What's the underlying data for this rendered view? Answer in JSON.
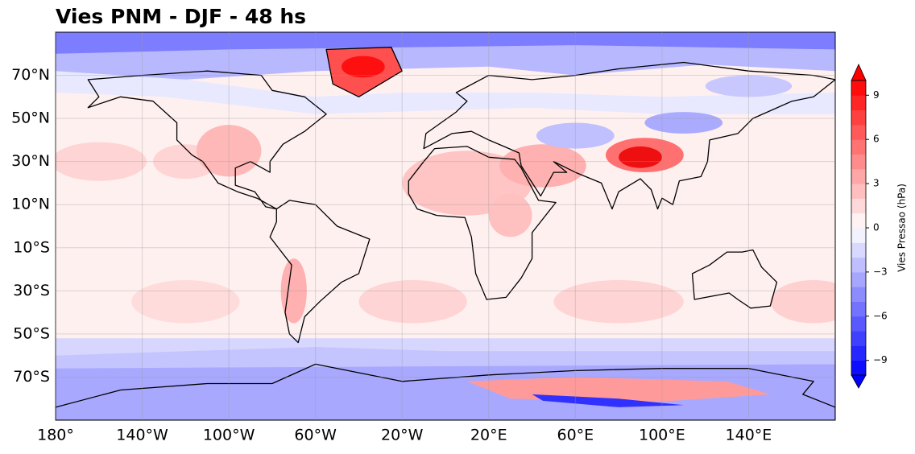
{
  "map": {
    "title": "Vies PNM - DJF - 48 hs",
    "xlim": [
      -180,
      180
    ],
    "ylim": [
      -90,
      90
    ],
    "xticks": [
      {
        "value": -180,
        "label": "180°"
      },
      {
        "value": -140,
        "label": "140°W"
      },
      {
        "value": -100,
        "label": "100°W"
      },
      {
        "value": -60,
        "label": "60°W"
      },
      {
        "value": -20,
        "label": "20°W"
      },
      {
        "value": 20,
        "label": "20°E"
      },
      {
        "value": 60,
        "label": "60°E"
      },
      {
        "value": 100,
        "label": "100°E"
      },
      {
        "value": 140,
        "label": "140°E"
      }
    ],
    "yticks": [
      {
        "value": 70,
        "label": "70°N"
      },
      {
        "value": 50,
        "label": "50°N"
      },
      {
        "value": 30,
        "label": "30°N"
      },
      {
        "value": 10,
        "label": "10°N"
      },
      {
        "value": -10,
        "label": "10°S"
      },
      {
        "value": -30,
        "label": "30°S"
      },
      {
        "value": -50,
        "label": "50°S"
      },
      {
        "value": -70,
        "label": "70°S"
      }
    ]
  },
  "colorbar": {
    "label": "Vies Pressao (hPa)",
    "lim": [
      -10,
      10
    ],
    "ticks": [
      {
        "value": 9,
        "label": "9"
      },
      {
        "value": 6,
        "label": "6"
      },
      {
        "value": 3,
        "label": "3"
      },
      {
        "value": 0,
        "label": "0"
      },
      {
        "value": -3,
        "label": "−3"
      },
      {
        "value": -6,
        "label": "−6"
      },
      {
        "value": -9,
        "label": "−9"
      }
    ]
  }
}
